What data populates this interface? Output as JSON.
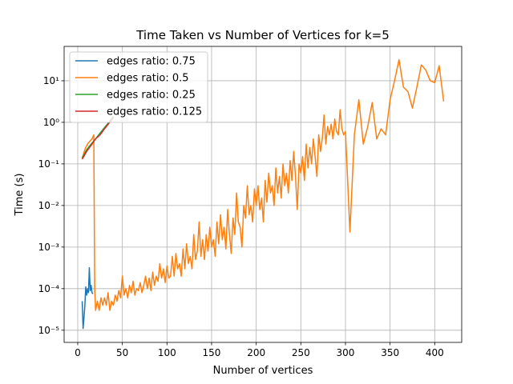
{
  "chart_data": {
    "type": "line",
    "title": "Time Taken vs Number of Vertices for k=5",
    "xlabel": "Number of vertices",
    "ylabel": "Time (s)",
    "xlim": [
      -15.25,
      430.25
    ],
    "ylim": [
      5.1e-06,
      67
    ],
    "xticks": [
      0,
      50,
      100,
      150,
      200,
      250,
      300,
      350,
      400
    ],
    "yticks": [
      {
        "value": 1e-05,
        "label": "10⁻⁵"
      },
      {
        "value": 0.0001,
        "label": "10⁻⁴"
      },
      {
        "value": 0.001,
        "label": "10⁻³"
      },
      {
        "value": 0.01,
        "label": "10⁻²"
      },
      {
        "value": 0.1,
        "label": "10⁻¹"
      },
      {
        "value": 1,
        "label": "10⁰"
      },
      {
        "value": 10,
        "label": "10¹"
      }
    ],
    "log_y": true,
    "grid": true,
    "legend": "upper left",
    "series": [
      {
        "name": "edges ratio: 0.75",
        "color": "#1f77b4",
        "x": [
          5,
          6,
          7,
          8,
          9,
          10,
          11,
          12,
          13,
          14,
          15,
          16,
          17
        ],
        "values": [
          5e-05,
          1.1e-05,
          2e-05,
          4e-05,
          0.00011,
          7e-05,
          0.0001,
          8e-05,
          0.00032,
          9e-05,
          0.00012,
          8e-05,
          7.5e-05
        ]
      },
      {
        "name": "edges ratio: 0.5",
        "color": "#ff7f0e",
        "x": [
          5,
          6,
          7,
          8,
          9,
          10,
          11,
          12,
          13,
          14,
          15,
          16,
          17,
          18,
          19,
          20,
          22,
          24,
          26,
          28,
          30,
          32,
          34,
          36,
          38,
          40,
          42,
          44,
          46,
          48,
          50,
          52,
          54,
          56,
          58,
          60,
          62,
          64,
          66,
          68,
          70,
          72,
          74,
          76,
          78,
          80,
          82,
          84,
          86,
          88,
          90,
          92,
          94,
          96,
          98,
          100,
          102,
          104,
          106,
          108,
          110,
          112,
          114,
          116,
          118,
          120,
          122,
          124,
          126,
          128,
          130,
          132,
          134,
          136,
          138,
          140,
          142,
          144,
          146,
          148,
          150,
          152,
          154,
          156,
          158,
          160,
          162,
          164,
          166,
          168,
          170,
          172,
          174,
          176,
          178,
          180,
          182,
          184,
          186,
          188,
          190,
          192,
          194,
          196,
          198,
          200,
          202,
          204,
          206,
          208,
          210,
          212,
          214,
          216,
          218,
          220,
          222,
          224,
          226,
          228,
          230,
          232,
          234,
          236,
          238,
          240,
          242,
          244,
          246,
          248,
          250,
          252,
          254,
          256,
          258,
          260,
          262,
          264,
          266,
          268,
          270,
          272,
          274,
          276,
          278,
          280,
          282,
          284,
          286,
          288,
          290,
          292,
          294,
          296,
          298,
          300,
          305,
          310,
          315,
          320,
          325,
          330,
          335,
          340,
          345,
          350,
          355,
          360,
          365,
          370,
          375,
          380,
          385,
          390,
          395,
          400,
          405,
          410
        ],
        "values": [
          0.14,
          0.16,
          0.19,
          0.22,
          0.25,
          0.27,
          0.3,
          0.32,
          0.34,
          0.36,
          0.38,
          0.4,
          0.45,
          0.5,
          0.0001,
          3e-05,
          5e-05,
          3e-05,
          6e-05,
          4e-05,
          6e-05,
          4e-05,
          8e-05,
          3e-05,
          5e-05,
          4e-05,
          7e-05,
          5e-05,
          9e-05,
          6e-05,
          0.0002,
          7e-05,
          0.0001,
          6e-05,
          0.00012,
          8e-05,
          0.00015,
          7e-05,
          0.0001,
          9e-05,
          0.00014,
          8e-05,
          0.00012,
          0.0002,
          0.0001,
          0.00018,
          9e-05,
          0.00025,
          0.00012,
          0.0002,
          0.00015,
          0.0004,
          0.00018,
          0.0003,
          0.00014,
          0.00035,
          0.00018,
          0.0002,
          0.0006,
          0.0002,
          0.0007,
          0.0003,
          0.0004,
          0.0002,
          0.0009,
          0.0003,
          0.0012,
          0.0004,
          0.0006,
          0.0003,
          0.002,
          0.0005,
          0.0008,
          0.004,
          0.0006,
          0.0015,
          0.0005,
          0.002,
          0.0008,
          0.003,
          0.001,
          0.0015,
          0.0006,
          0.004,
          0.0012,
          0.006,
          0.0015,
          0.003,
          0.0009,
          0.008,
          0.002,
          0.0007,
          0.005,
          0.002,
          0.02,
          0.004,
          0.003,
          0.001,
          0.01,
          0.005,
          0.03,
          0.006,
          0.01,
          0.004,
          0.025,
          0.01,
          0.03,
          0.008,
          0.015,
          0.004,
          0.04,
          0.012,
          0.06,
          0.02,
          0.03,
          0.01,
          0.08,
          0.02,
          0.05,
          0.015,
          0.1,
          0.03,
          0.06,
          0.02,
          0.12,
          0.04,
          0.2,
          0.05,
          0.008,
          0.1,
          0.06,
          0.15,
          0.04,
          0.3,
          0.08,
          0.25,
          0.1,
          0.4,
          0.15,
          0.05,
          0.5,
          0.2,
          0.4,
          1.5,
          0.3,
          0.8,
          0.5,
          0.9,
          0.4,
          1.2,
          0.6,
          0.5,
          2.0,
          0.7,
          0.5,
          0.6,
          0.0023,
          0.5,
          3.5,
          0.3,
          0.8,
          3.0,
          0.4,
          0.7,
          0.5,
          3.5,
          10,
          32,
          7,
          5.5,
          2.2,
          7,
          24,
          18,
          10,
          9,
          23,
          3.2
        ]
      },
      {
        "name": "edges ratio: 0.25",
        "color": "#2ca02c",
        "x": [
          5,
          10,
          15,
          20,
          25,
          30,
          35,
          40
        ],
        "values": [
          0.14,
          0.22,
          0.3,
          0.4,
          0.55,
          0.75,
          1.0,
          1.4
        ]
      },
      {
        "name": "edges ratio: 0.125",
        "color": "#d62728",
        "x": [
          5,
          10,
          15,
          20,
          25,
          30,
          35,
          40
        ],
        "values": [
          0.13,
          0.2,
          0.28,
          0.4,
          0.5,
          0.7,
          0.95,
          1.3
        ]
      }
    ]
  }
}
